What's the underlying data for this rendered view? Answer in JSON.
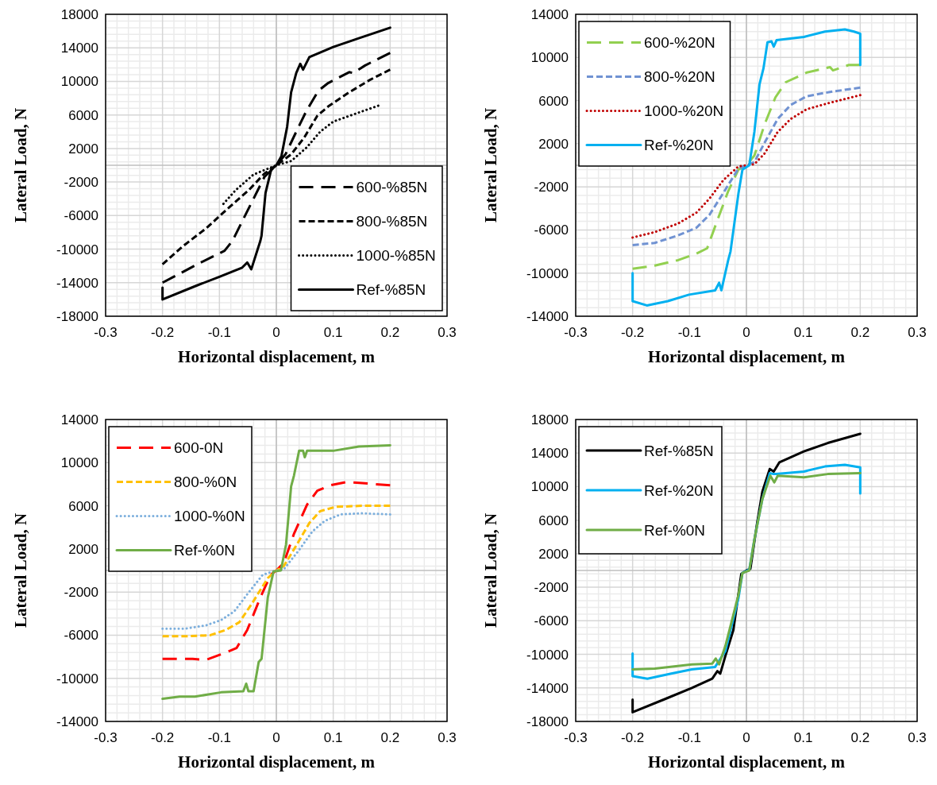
{
  "chart_data": [
    {
      "type": "line",
      "xlabel": "Horizontal displacement, m",
      "ylabel": "Lateral Load, N",
      "xlim": [
        -0.3,
        0.3
      ],
      "xticks": [
        -0.3,
        -0.2,
        -0.1,
        0,
        0.1,
        0.2,
        0.3
      ],
      "ylim": [
        -18000,
        18000
      ],
      "yticks": [
        -18000,
        -14000,
        -10000,
        -6000,
        -2000,
        2000,
        6000,
        10000,
        14000,
        18000
      ],
      "grid": true,
      "legend": "bottom right",
      "series": [
        {
          "name": "600-%85N",
          "color": "#000000",
          "line_style": "dashed",
          "x": [
            -0.2,
            -0.133,
            -0.091,
            -0.077,
            -0.049,
            -0.021,
            0,
            0.016,
            0.035,
            0.053,
            0.074,
            0.091,
            0.128,
            0.135,
            0.156,
            0.2
          ],
          "values": [
            -14000,
            -11600,
            -10200,
            -9000,
            -5200,
            -1400,
            0,
            1300,
            4000,
            6500,
            8900,
            9800,
            11100,
            11000,
            11900,
            13400
          ]
        },
        {
          "name": "800-%85N",
          "color": "#000000",
          "line_style": "dashed",
          "x": [
            -0.2,
            -0.165,
            -0.123,
            -0.086,
            -0.049,
            -0.021,
            0,
            0.026,
            0.049,
            0.072,
            0.091,
            0.128,
            0.165,
            0.2
          ],
          "values": [
            -11800,
            -9700,
            -7500,
            -5200,
            -3000,
            -1000,
            0,
            1300,
            3300,
            5900,
            7000,
            8700,
            10200,
            11400
          ]
        },
        {
          "name": "1000-%85N",
          "color": "#000000",
          "line_style": "dotted",
          "x": [
            -0.093,
            -0.072,
            -0.04,
            0,
            0.026,
            0.053,
            0.077,
            0.1,
            0.133,
            0.179
          ],
          "values": [
            -4600,
            -3000,
            -1100,
            0,
            500,
            2100,
            4000,
            5200,
            6000,
            7100
          ]
        },
        {
          "name": "Ref-%85N",
          "color": "#000000",
          "line_style": "solid",
          "x": [
            -0.2,
            -0.2,
            -0.142,
            -0.1,
            -0.06,
            -0.051,
            -0.044,
            -0.028,
            -0.026,
            -0.019,
            -0.009,
            0,
            0.009,
            0.019,
            0.026,
            0.035,
            0.042,
            0.047,
            0.058,
            0.1,
            0.147,
            0.2
          ],
          "values": [
            -14600,
            -16000,
            -14400,
            -13300,
            -12200,
            -11600,
            -12400,
            -9000,
            -8400,
            -3300,
            -500,
            0,
            1100,
            4600,
            8700,
            11000,
            12100,
            11400,
            12900,
            14100,
            15200,
            16400
          ]
        }
      ]
    },
    {
      "type": "line",
      "xlabel": "Horizontal displacement, m",
      "ylabel": "Lateral Load, N",
      "xlim": [
        -0.3,
        0.3
      ],
      "xticks": [
        -0.3,
        -0.2,
        -0.1,
        0,
        0.1,
        0.2,
        0.3
      ],
      "ylim": [
        -14000,
        14000
      ],
      "yticks": [
        -14000,
        -10000,
        -6000,
        -2000,
        2000,
        6000,
        10000,
        14000
      ],
      "grid": true,
      "legend": "top left",
      "series": [
        {
          "name": "600-%20N",
          "color": "#92d050",
          "line_style": "dashed",
          "x": [
            -0.2,
            -0.161,
            -0.12,
            -0.088,
            -0.069,
            -0.051,
            -0.032,
            -0.014,
            0,
            0.014,
            0.032,
            0.051,
            0.069,
            0.106,
            0.147,
            0.152,
            0.18,
            0.2
          ],
          "values": [
            -9600,
            -9300,
            -8800,
            -8200,
            -7700,
            -5100,
            -2400,
            -400,
            0,
            900,
            3800,
            6300,
            7700,
            8600,
            9100,
            8800,
            9300,
            9300
          ]
        },
        {
          "name": "800-%20N",
          "color": "#7092d2",
          "line_style": "dashed",
          "x": [
            -0.2,
            -0.161,
            -0.12,
            -0.088,
            -0.065,
            -0.041,
            -0.014,
            0,
            0.014,
            0.032,
            0.055,
            0.078,
            0.106,
            0.147,
            0.2
          ],
          "values": [
            -7400,
            -7200,
            -6500,
            -5800,
            -4600,
            -2600,
            -300,
            0,
            300,
            2100,
            4300,
            5600,
            6400,
            6800,
            7200
          ]
        },
        {
          "name": "1000-%20N",
          "color": "#c00000",
          "line_style": "dotted",
          "x": [
            -0.2,
            -0.161,
            -0.12,
            -0.088,
            -0.065,
            -0.041,
            -0.014,
            0,
            0.014,
            0.032,
            0.055,
            0.078,
            0.106,
            0.147,
            0.2
          ],
          "values": [
            -6700,
            -6200,
            -5400,
            -4400,
            -3100,
            -1400,
            -100,
            0,
            100,
            1100,
            3100,
            4300,
            5200,
            5800,
            6500
          ]
        },
        {
          "name": "Ref-%20N",
          "color": "#00b0f0",
          "line_style": "solid",
          "x": [
            -0.2,
            -0.2,
            -0.175,
            -0.138,
            -0.101,
            -0.055,
            -0.048,
            -0.044,
            -0.032,
            -0.028,
            -0.014,
            -0.007,
            0.005,
            0.014,
            0.023,
            0.03,
            0.037,
            0.044,
            0.048,
            0.053,
            0.101,
            0.138,
            0.173,
            0.189,
            0.2,
            0.2
          ],
          "values": [
            -10000,
            -12600,
            -13000,
            -12600,
            -12000,
            -11600,
            -10900,
            -11600,
            -8800,
            -8000,
            -2600,
            -400,
            0,
            3100,
            7500,
            9000,
            11400,
            11500,
            11000,
            11600,
            11900,
            12400,
            12600,
            12400,
            12200,
            9300
          ]
        }
      ]
    },
    {
      "type": "line",
      "xlabel": "Horizontal displacement, m",
      "ylabel": "Lateral Load, N",
      "xlim": [
        -0.3,
        0.3
      ],
      "xticks": [
        -0.3,
        -0.2,
        -0.1,
        0,
        0.1,
        0.2,
        0.3
      ],
      "ylim": [
        -14000,
        14000
      ],
      "yticks": [
        -14000,
        -10000,
        -6000,
        -2000,
        2000,
        6000,
        10000,
        14000
      ],
      "grid": true,
      "legend": "top left",
      "series": [
        {
          "name": "600-0N",
          "color": "#ff0000",
          "line_style": "dashed",
          "x": [
            -0.2,
            -0.147,
            -0.124,
            -0.088,
            -0.07,
            -0.051,
            -0.028,
            -0.01,
            0,
            0.013,
            0.031,
            0.054,
            0.072,
            0.095,
            0.123,
            0.151,
            0.2
          ],
          "values": [
            -8200,
            -8200,
            -8300,
            -7600,
            -7200,
            -5500,
            -2500,
            -400,
            0,
            700,
            3400,
            6100,
            7400,
            7900,
            8200,
            8100,
            7900
          ]
        },
        {
          "name": "800-%0N",
          "color": "#ffc000",
          "line_style": "dashed",
          "x": [
            -0.2,
            -0.161,
            -0.116,
            -0.088,
            -0.065,
            -0.042,
            -0.015,
            0,
            0.013,
            0.036,
            0.058,
            0.077,
            0.104,
            0.15,
            0.2
          ],
          "values": [
            -6100,
            -6100,
            -6000,
            -5500,
            -4800,
            -3000,
            -700,
            0,
            400,
            2400,
            4400,
            5500,
            5900,
            6000,
            6000
          ]
        },
        {
          "name": "1000-%0N",
          "color": "#7cafdd",
          "line_style": "dotted",
          "x": [
            -0.2,
            -0.161,
            -0.124,
            -0.097,
            -0.074,
            -0.051,
            -0.024,
            0,
            0.013,
            0.04,
            0.063,
            0.085,
            0.113,
            0.15,
            0.2
          ],
          "values": [
            -5400,
            -5400,
            -5100,
            -4600,
            -3800,
            -2200,
            -400,
            0,
            100,
            1900,
            3600,
            4600,
            5200,
            5300,
            5200
          ]
        },
        {
          "name": "Ref-%0N",
          "color": "#70ad47",
          "line_style": "solid",
          "x": [
            -0.2,
            -0.17,
            -0.143,
            -0.097,
            -0.058,
            -0.053,
            -0.049,
            -0.04,
            -0.031,
            -0.026,
            -0.015,
            -0.005,
            0.008,
            0.017,
            0.026,
            0.031,
            0.04,
            0.047,
            0.05,
            0.054,
            0.1,
            0.145,
            0.2
          ],
          "values": [
            -11900,
            -11700,
            -11700,
            -11300,
            -11200,
            -10500,
            -11200,
            -11200,
            -8500,
            -8200,
            -2500,
            -100,
            0,
            2400,
            7800,
            8800,
            11100,
            11100,
            10500,
            11100,
            11100,
            11500,
            11600
          ]
        }
      ]
    },
    {
      "type": "line",
      "xlabel": "Horizontal displacement, m",
      "ylabel": "Lateral Load, N",
      "xlim": [
        -0.3,
        0.3
      ],
      "xticks": [
        -0.3,
        -0.2,
        -0.1,
        0,
        0.1,
        0.2,
        0.3
      ],
      "ylim": [
        -18000,
        18000
      ],
      "yticks": [
        -18000,
        -14000,
        -10000,
        -6000,
        -2000,
        2000,
        6000,
        10000,
        14000,
        18000
      ],
      "grid": true,
      "legend": "top left",
      "series": [
        {
          "name": "Ref-%85N",
          "color": "#000000",
          "line_style": "solid",
          "x": [
            -0.2,
            -0.2,
            -0.142,
            -0.096,
            -0.06,
            -0.051,
            -0.046,
            -0.037,
            -0.023,
            -0.009,
            0,
            0.007,
            0.018,
            0.028,
            0.041,
            0.048,
            0.058,
            0.101,
            0.143,
            0.2
          ],
          "values": [
            -15400,
            -16900,
            -15300,
            -14000,
            -12900,
            -12000,
            -12300,
            -10200,
            -7100,
            -400,
            0,
            200,
            5300,
            9400,
            12100,
            11800,
            12900,
            14200,
            15200,
            16300
          ]
        },
        {
          "name": "Ref-%20N",
          "color": "#00b0f0",
          "line_style": "solid",
          "x": [
            -0.2,
            -0.2,
            -0.174,
            -0.132,
            -0.096,
            -0.055,
            -0.037,
            -0.014,
            -0.007,
            0.005,
            0.014,
            0.028,
            0.041,
            0.048,
            0.053,
            0.101,
            0.138,
            0.173,
            0.2,
            0.2
          ],
          "values": [
            -9900,
            -12600,
            -12900,
            -12300,
            -11800,
            -11500,
            -9600,
            -3300,
            -300,
            100,
            3700,
            8500,
            11600,
            11500,
            11500,
            11800,
            12400,
            12600,
            12300,
            9200
          ]
        },
        {
          "name": "Ref-%0N",
          "color": "#70ad47",
          "line_style": "solid",
          "x": [
            -0.2,
            -0.161,
            -0.096,
            -0.06,
            -0.054,
            -0.048,
            -0.037,
            -0.014,
            -0.007,
            0.005,
            0.014,
            0.028,
            0.042,
            0.049,
            0.055,
            0.101,
            0.143,
            0.2
          ],
          "values": [
            -11800,
            -11700,
            -11200,
            -11100,
            -10500,
            -11200,
            -9000,
            -2900,
            -300,
            0,
            3700,
            8500,
            11300,
            10500,
            11300,
            11100,
            11500,
            11600
          ]
        }
      ]
    }
  ]
}
